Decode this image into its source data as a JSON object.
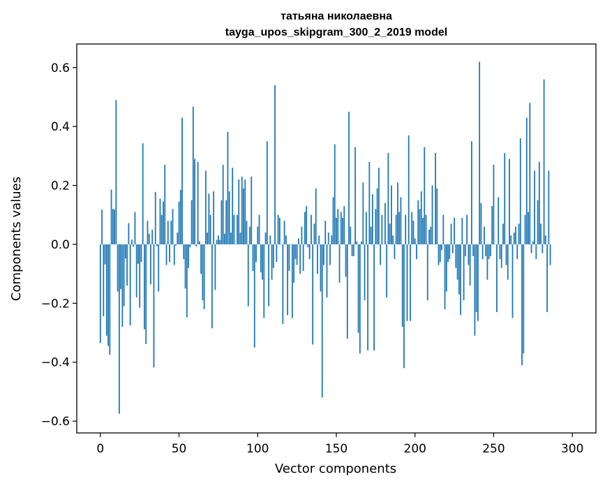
{
  "chart_data": {
    "type": "bar",
    "title_line1": "татьяна николаевна",
    "title_line2": "tayga_upos_skipgram_300_2_2019 model",
    "xlabel": "Vector components",
    "ylabel": "Components values",
    "xlim": [
      -15,
      315
    ],
    "ylim": [
      -0.64,
      0.68
    ],
    "xticks": [
      0,
      50,
      100,
      150,
      200,
      250,
      300
    ],
    "yticks": [
      -0.6,
      -0.4,
      -0.2,
      0.0,
      0.2,
      0.4,
      0.6
    ],
    "ytick_labels": [
      "−0.6",
      "−0.4",
      "−0.2",
      "0.0",
      "0.2",
      "0.4",
      "0.6"
    ],
    "bar_color": "#1f77b4",
    "grid": false,
    "values": [
      -0.335,
      0.118,
      -0.244,
      -0.068,
      -0.31,
      -0.345,
      -0.375,
      0.186,
      0.12,
      0.118,
      0.49,
      -0.16,
      -0.575,
      -0.152,
      -0.28,
      -0.21,
      -0.048,
      -0.14,
      0.072,
      -0.275,
      0.016,
      -0.008,
      0.11,
      -0.18,
      -0.066,
      -0.215,
      -0.06,
      0.343,
      -0.288,
      -0.338,
      0.08,
      0.036,
      -0.136,
      0.05,
      -0.418,
      0.178,
      -0.006,
      -0.16,
      0.155,
      0.1,
      0.145,
      0.27,
      -0.07,
      0.08,
      -0.06,
      0.08,
      0.12,
      -0.07,
      -0.004,
      0.04,
      0.145,
      0.185,
      0.43,
      -0.05,
      -0.15,
      -0.248,
      -0.08,
      -0.01,
      0.15,
      0.467,
      0.29,
      -0.007,
      0.28,
      0.01,
      -0.1,
      -0.19,
      -0.22,
      0.25,
      0.04,
      0.172,
      0.1,
      -0.285,
      0.18,
      -0.155,
      0.015,
      0.03,
      0.015,
      0.15,
      0.27,
      0.036,
      0.15,
      0.382,
      0.18,
      0.04,
      0.26,
      0.1,
      0.0,
      0.1,
      0.22,
      0.04,
      0.23,
      0.19,
      0.22,
      0.08,
      -0.21,
      0.06,
      0.23,
      -0.09,
      -0.35,
      -0.06,
      0.06,
      0.1,
      -0.095,
      -0.12,
      -0.25,
      0.04,
      0.35,
      -0.21,
      0.03,
      -0.12,
      -0.08,
      0.54,
      -0.06,
      0.1,
      0.09,
      0.0,
      -0.27,
      0.08,
      0.03,
      -0.24,
      -0.09,
      0.0,
      -0.25,
      -0.13,
      -0.05,
      -0.07,
      0.02,
      -0.1,
      0.06,
      -0.09,
      0.11,
      0.13,
      -0.01,
      -0.05,
      0.1,
      -0.34,
      0.07,
      0.19,
      -0.1,
      0.03,
      -0.16,
      -0.52,
      -0.07,
      0.08,
      -0.18,
      0.04,
      -0.07,
      0.03,
      0.16,
      0.34,
      0.09,
      0.12,
      -0.13,
      0.11,
      0.09,
      0.13,
      -0.11,
      -0.32,
      0.45,
      0.06,
      -0.04,
      -0.04,
      0.33,
      0.01,
      -0.3,
      -0.37,
      0.01,
      0.21,
      -0.19,
      0.11,
      -0.36,
      0.28,
      0.06,
      0.17,
      -0.36,
      0.12,
      0.19,
      0.26,
      -0.07,
      0.1,
      0.0,
      0.14,
      -0.18,
      0.31,
      0.07,
      0.2,
      0.03,
      -0.05,
      0.1,
      0.21,
      0.11,
      0.16,
      -0.28,
      -0.42,
      0.1,
      -0.26,
      0.37,
      -0.26,
      0.11,
      0.08,
      0.02,
      -0.05,
      0.15,
      0.12,
      0.18,
      0.09,
      0.33,
      0.1,
      -0.19,
      0.05,
      0.06,
      0.2,
      0.0,
      0.31,
      0.19,
      -0.07,
      -0.06,
      -0.02,
      0.1,
      -0.22,
      -0.16,
      -0.06,
      -0.05,
      0.07,
      -0.03,
      0.09,
      -0.08,
      -0.12,
      -0.17,
      -0.24,
      0.09,
      -0.19,
      -0.04,
      0.1,
      -0.07,
      -0.14,
      0.35,
      -0.04,
      -0.31,
      -0.23,
      -0.26,
      0.62,
      0.14,
      -0.05,
      0.06,
      -0.04,
      -0.12,
      -0.05,
      -0.04,
      0.13,
      0.27,
      0.0,
      -0.23,
      0.16,
      -0.05,
      -0.08,
      0.07,
      0.31,
      -0.07,
      -0.12,
      0.29,
      0.03,
      -0.25,
      0.04,
      0.06,
      -0.05,
      0.07,
      0.36,
      -0.41,
      -0.37,
      0.1,
      0.43,
      0.11,
      0.48,
      -0.03,
      0.01,
      0.25,
      -0.05,
      0.15,
      0.28,
      0.07,
      -0.03,
      0.56,
      0.03,
      -0.23,
      0.25,
      -0.07
    ]
  }
}
